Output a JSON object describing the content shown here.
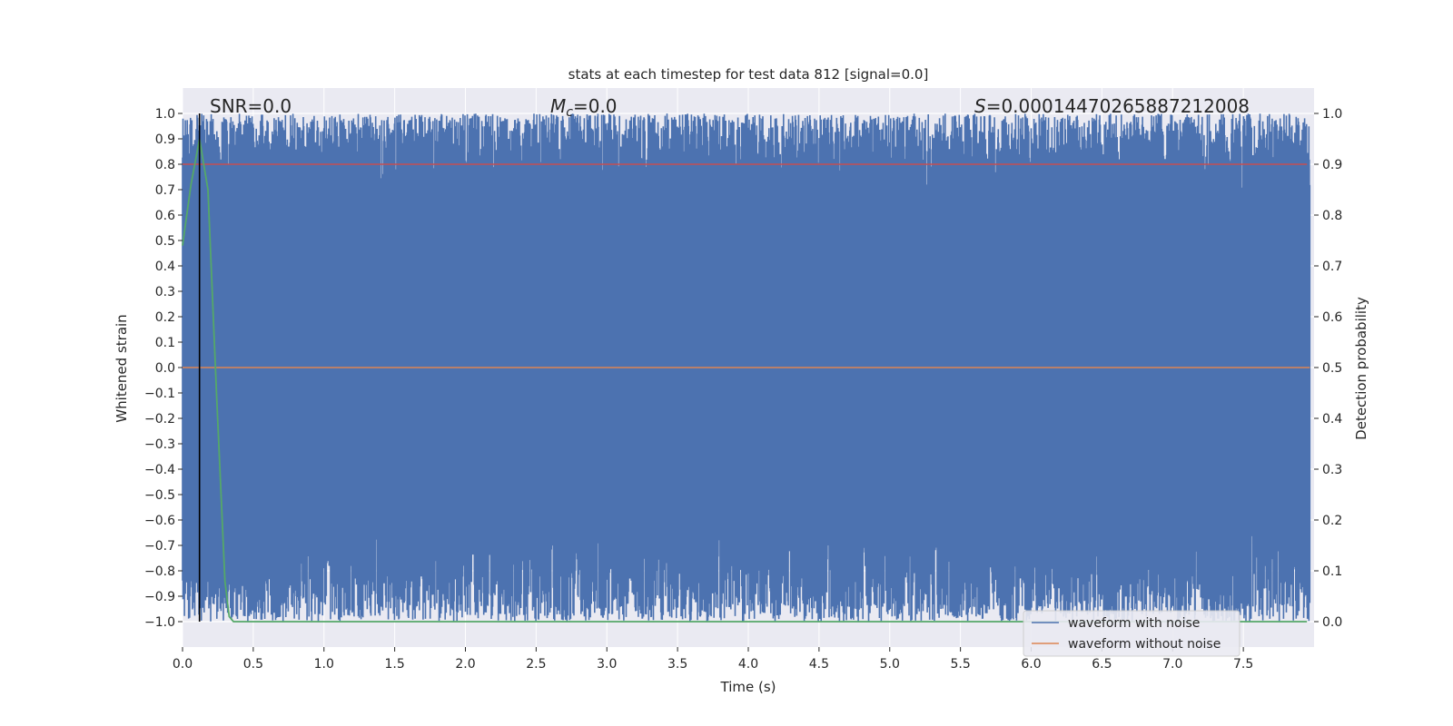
{
  "chart_data": {
    "type": "line",
    "title": "stats at each timestep for test data 812 [signal=0.0]",
    "xlabel": "Time (s)",
    "ylabel": "Whitened strain",
    "ylabel_right": "Detection probability",
    "xlim": [
      0.0,
      8.0
    ],
    "ylim": [
      -1.1,
      1.1
    ],
    "ylim_right": [
      -0.05,
      1.05
    ],
    "x_ticks": [
      0.0,
      0.5,
      1.0,
      1.5,
      2.0,
      2.5,
      3.0,
      3.5,
      4.0,
      4.5,
      5.0,
      5.5,
      6.0,
      6.5,
      7.0,
      7.5
    ],
    "x_tick_labels": [
      "0.0",
      "0.5",
      "1.0",
      "1.5",
      "2.0",
      "2.5",
      "3.0",
      "3.5",
      "4.0",
      "4.5",
      "5.0",
      "5.5",
      "6.0",
      "6.5",
      "7.0",
      "7.5"
    ],
    "y_ticks": [
      1.0,
      0.9,
      0.8,
      0.7,
      0.6,
      0.5,
      0.4,
      0.3,
      0.2,
      0.1,
      0.0,
      -0.1,
      -0.2,
      -0.3,
      -0.4,
      -0.5,
      -0.6,
      -0.7,
      -0.8,
      -0.9,
      -1.0
    ],
    "y_tick_labels": [
      "1.0",
      "0.9",
      "0.8",
      "0.7",
      "0.6",
      "0.5",
      "0.4",
      "0.3",
      "0.2",
      "0.1",
      "0.0",
      "−0.1",
      "−0.2",
      "−0.3",
      "−0.4",
      "−0.5",
      "−0.6",
      "−0.7",
      "−0.8",
      "−0.9",
      "−1.0"
    ],
    "y_right_ticks": [
      1.0,
      0.9,
      0.8,
      0.7,
      0.6,
      0.5,
      0.4,
      0.3,
      0.2,
      0.1,
      0.0
    ],
    "y_right_tick_labels": [
      "1.0",
      "0.9",
      "0.8",
      "0.7",
      "0.6",
      "0.5",
      "0.4",
      "0.3",
      "0.2",
      "0.1",
      "0.0"
    ],
    "grid": true,
    "legend_placement": "lower-right",
    "annotations": {
      "snr": "SNR=0.0",
      "mc_symbol": "M",
      "mc_subscript": "c",
      "mc_value": "=0.0",
      "s_symbol": "S",
      "s_value": "=0.00014470265887212008"
    },
    "marker_line_x": 0.12,
    "series": [
      {
        "name": "waveform with noise",
        "color": "#4c72b0",
        "description_range": [
          -1.0,
          1.0
        ],
        "sample_rate_note": "dense noise filling the range between -1.0 and 1.0 across 0.0-8.0 s"
      },
      {
        "name": "waveform without noise",
        "color": "#dd8452",
        "x": [
          0.0,
          8.0
        ],
        "y": [
          0.0,
          0.0
        ]
      },
      {
        "color": "#55a868",
        "axis": "right",
        "x": [
          0.0,
          0.06,
          0.12,
          0.18,
          0.24,
          0.3,
          0.33,
          0.36,
          0.5,
          1.0,
          2.0,
          3.0,
          4.0,
          5.0,
          6.0,
          7.0,
          7.95
        ],
        "y": [
          0.74,
          0.86,
          0.95,
          0.85,
          0.45,
          0.08,
          0.01,
          0.0,
          0.0,
          0.0,
          0.0,
          0.0,
          0.0,
          0.0,
          0.0,
          0.0,
          0.0
        ]
      },
      {
        "color": "#c44e52",
        "axis": "right",
        "x": [
          0.0,
          7.95
        ],
        "y": [
          0.9,
          0.9
        ]
      }
    ]
  }
}
